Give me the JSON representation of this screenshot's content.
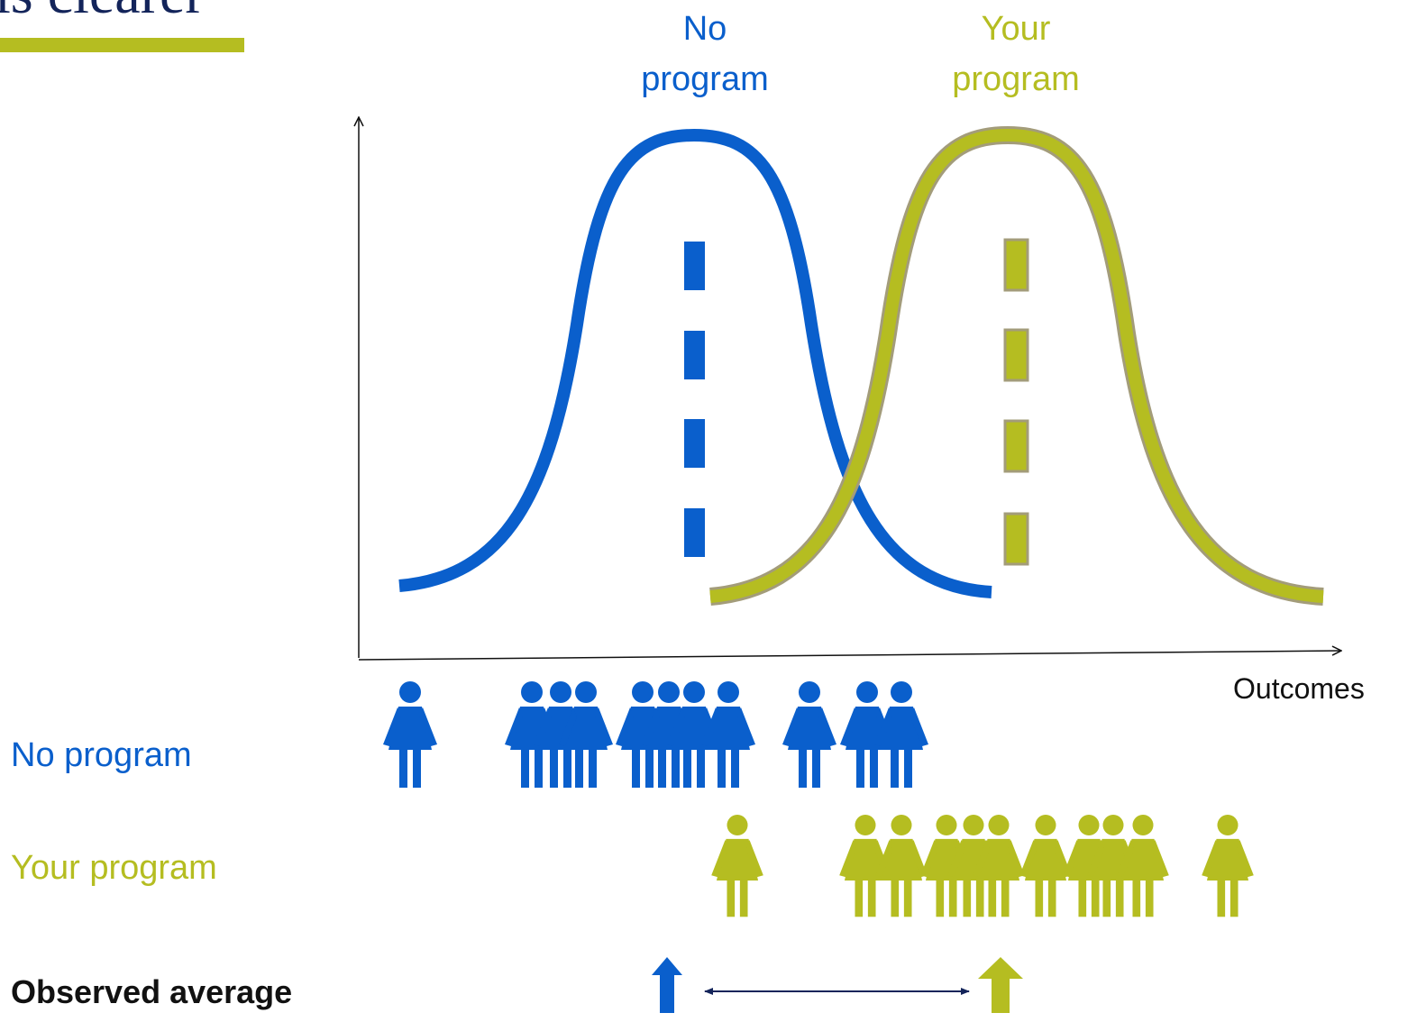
{
  "header": {
    "title": "is clearer"
  },
  "curve_labels": [
    {
      "lines": [
        "No",
        "program"
      ]
    },
    {
      "lines": [
        "Your",
        "program"
      ]
    }
  ],
  "axis_label": "Outcomes",
  "rows": [
    {
      "label": "No program"
    },
    {
      "label": "Your program"
    },
    {
      "label": "Observed average"
    }
  ]
}
